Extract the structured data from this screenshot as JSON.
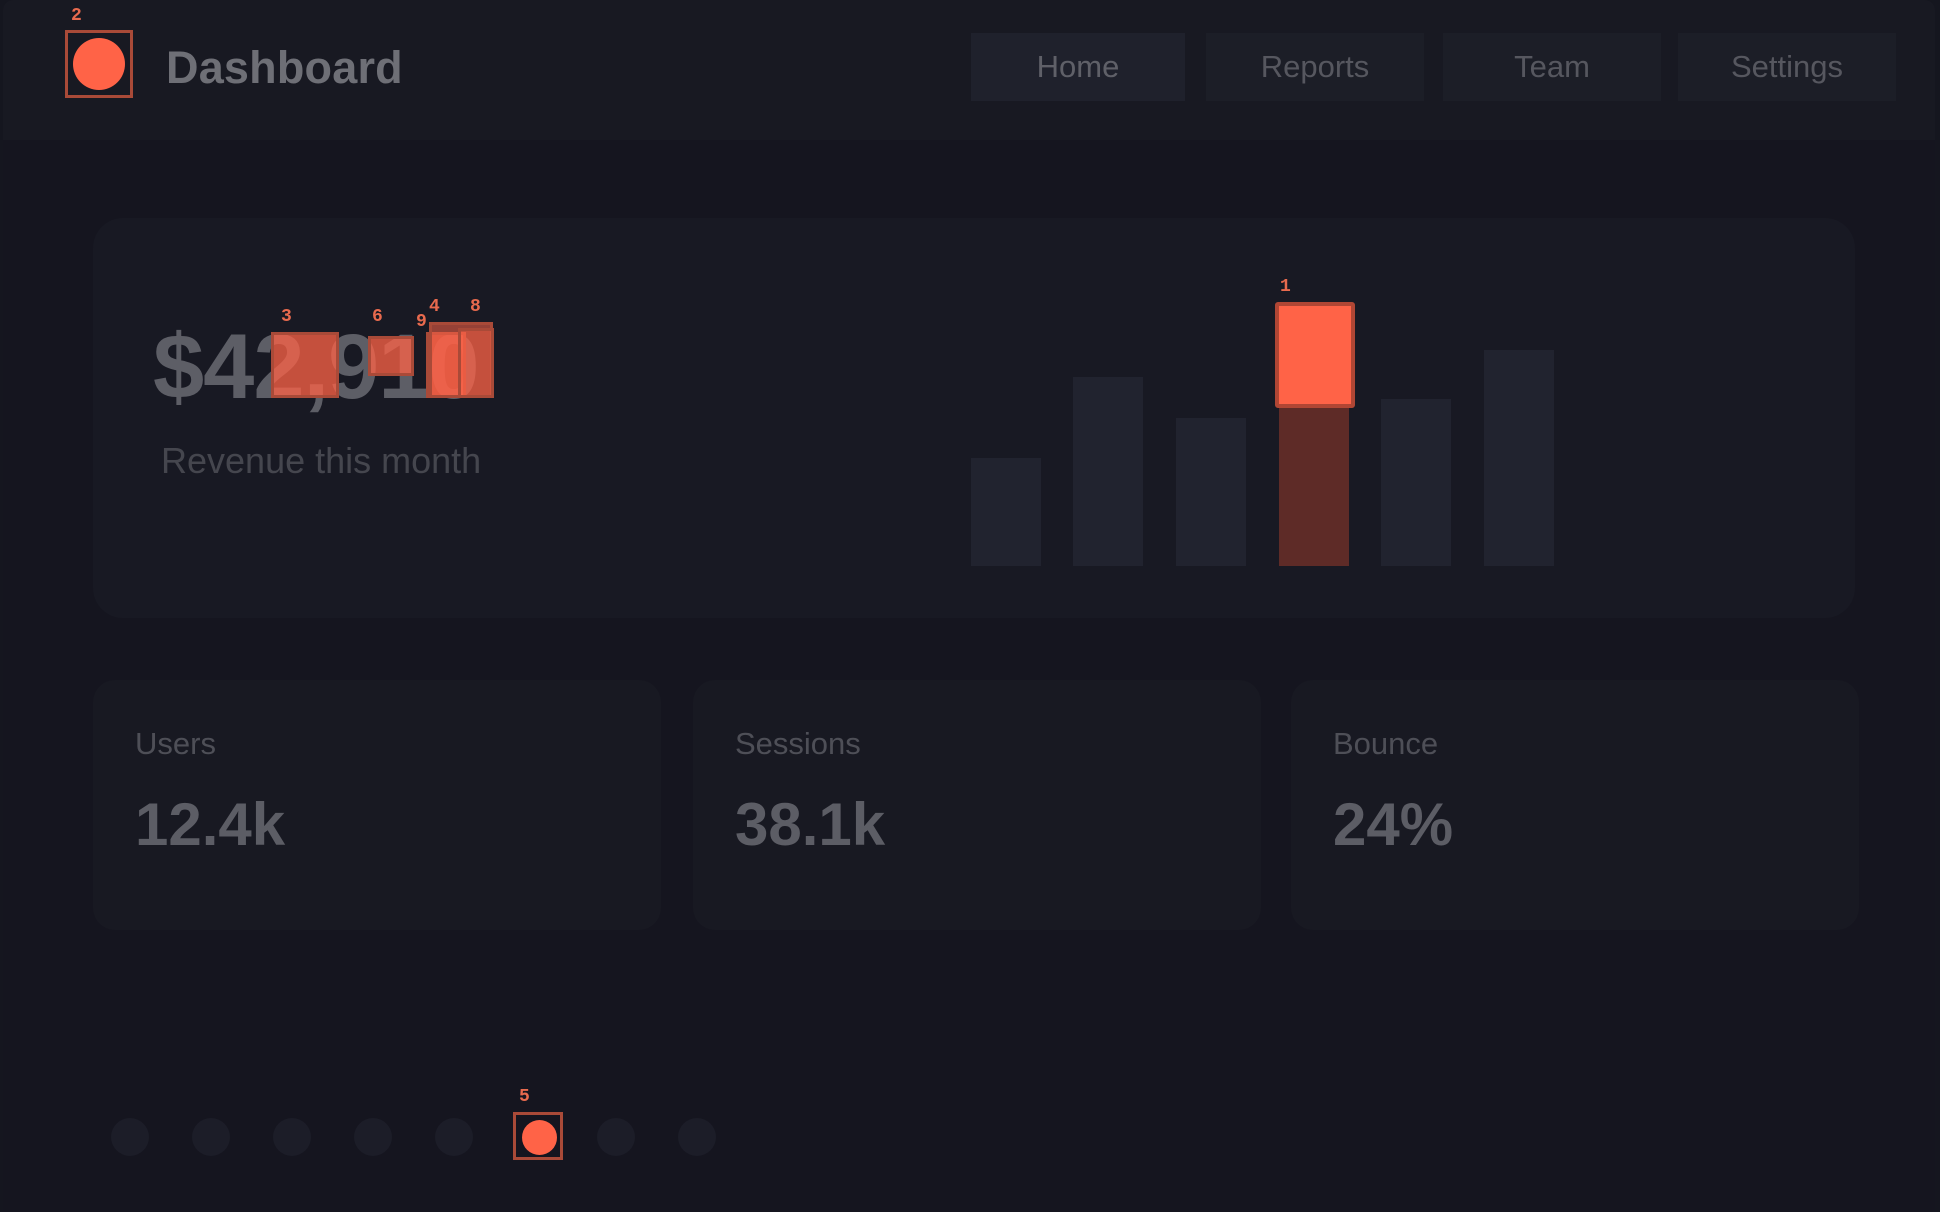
{
  "header": {
    "title": "Dashboard",
    "nav": [
      {
        "label": "Home"
      },
      {
        "label": "Reports"
      },
      {
        "label": "Team"
      },
      {
        "label": "Settings"
      }
    ]
  },
  "hero": {
    "value": "$42,910",
    "label": "Revenue this month"
  },
  "bar_chart": {
    "bar_count": 6,
    "highlighted_index": 3
  },
  "stats": [
    {
      "label": "Users",
      "value": "12.4k"
    },
    {
      "label": "Sessions",
      "value": "38.1k"
    },
    {
      "label": "Bounce",
      "value": "24%"
    }
  ],
  "pager": {
    "count": 8,
    "active_index": 5
  },
  "markers": [
    "1",
    "2",
    "3",
    "4",
    "5",
    "6",
    "8",
    "9"
  ],
  "colors": {
    "accent": "#ff6347",
    "background": "#15151f",
    "panel": "#181922"
  }
}
